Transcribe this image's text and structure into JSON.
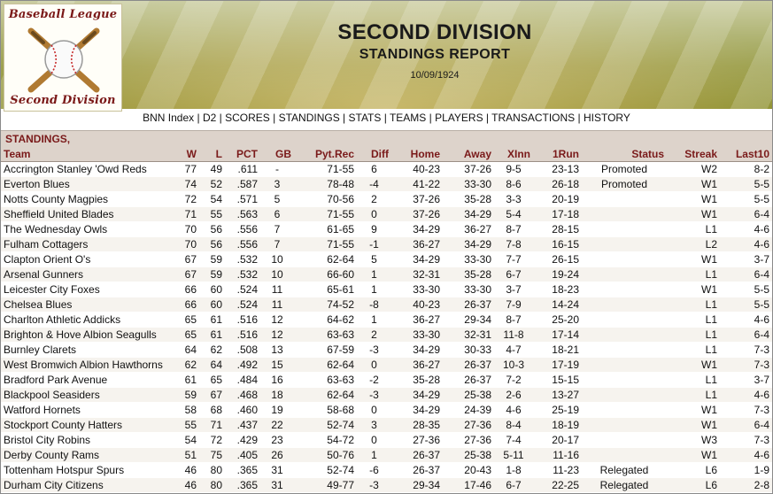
{
  "logo": {
    "top_text": "Baseball League",
    "bottom_text": "Second Division"
  },
  "header": {
    "title": "SECOND DIVISION",
    "subtitle": "STANDINGS REPORT",
    "date": "10/09/1924"
  },
  "nav": [
    "BNN Index",
    "D2",
    "SCORES",
    "STANDINGS",
    "STATS",
    "TEAMS",
    "PLAYERS",
    "TRANSACTIONS",
    "HISTORY"
  ],
  "section_title": "STANDINGS,",
  "columns": [
    "Team",
    "W",
    "L",
    "PCT",
    "GB",
    "Pyt.Rec",
    "Diff",
    "Home",
    "Away",
    "XInn",
    "1Run",
    "Status",
    "Streak",
    "Last10"
  ],
  "rows": [
    [
      "Accrington Stanley 'Owd Reds",
      "77",
      "49",
      ".611",
      "-",
      "71-55",
      "6",
      "40-23",
      "37-26",
      "9-5",
      "23-13",
      "Promoted",
      "W2",
      "8-2"
    ],
    [
      "Everton Blues",
      "74",
      "52",
      ".587",
      "3",
      "78-48",
      "-4",
      "41-22",
      "33-30",
      "8-6",
      "26-18",
      "Promoted",
      "W1",
      "5-5"
    ],
    [
      "Notts County Magpies",
      "72",
      "54",
      ".571",
      "5",
      "70-56",
      "2",
      "37-26",
      "35-28",
      "3-3",
      "20-19",
      "",
      "W1",
      "5-5"
    ],
    [
      "Sheffield United Blades",
      "71",
      "55",
      ".563",
      "6",
      "71-55",
      "0",
      "37-26",
      "34-29",
      "5-4",
      "17-18",
      "",
      "W1",
      "6-4"
    ],
    [
      "The Wednesday Owls",
      "70",
      "56",
      ".556",
      "7",
      "61-65",
      "9",
      "34-29",
      "36-27",
      "8-7",
      "28-15",
      "",
      "L1",
      "4-6"
    ],
    [
      "Fulham Cottagers",
      "70",
      "56",
      ".556",
      "7",
      "71-55",
      "-1",
      "36-27",
      "34-29",
      "7-8",
      "16-15",
      "",
      "L2",
      "4-6"
    ],
    [
      "Clapton Orient O's",
      "67",
      "59",
      ".532",
      "10",
      "62-64",
      "5",
      "34-29",
      "33-30",
      "7-7",
      "26-15",
      "",
      "W1",
      "3-7"
    ],
    [
      "Arsenal Gunners",
      "67",
      "59",
      ".532",
      "10",
      "66-60",
      "1",
      "32-31",
      "35-28",
      "6-7",
      "19-24",
      "",
      "L1",
      "6-4"
    ],
    [
      "Leicester City Foxes",
      "66",
      "60",
      ".524",
      "11",
      "65-61",
      "1",
      "33-30",
      "33-30",
      "3-7",
      "18-23",
      "",
      "W1",
      "5-5"
    ],
    [
      "Chelsea Blues",
      "66",
      "60",
      ".524",
      "11",
      "74-52",
      "-8",
      "40-23",
      "26-37",
      "7-9",
      "14-24",
      "",
      "L1",
      "5-5"
    ],
    [
      "Charlton Athletic Addicks",
      "65",
      "61",
      ".516",
      "12",
      "64-62",
      "1",
      "36-27",
      "29-34",
      "8-7",
      "25-20",
      "",
      "L1",
      "4-6"
    ],
    [
      "Brighton & Hove Albion Seagulls",
      "65",
      "61",
      ".516",
      "12",
      "63-63",
      "2",
      "33-30",
      "32-31",
      "11-8",
      "17-14",
      "",
      "L1",
      "6-4"
    ],
    [
      "Burnley Clarets",
      "64",
      "62",
      ".508",
      "13",
      "67-59",
      "-3",
      "34-29",
      "30-33",
      "4-7",
      "18-21",
      "",
      "L1",
      "7-3"
    ],
    [
      "West Bromwich Albion Hawthorns",
      "62",
      "64",
      ".492",
      "15",
      "62-64",
      "0",
      "36-27",
      "26-37",
      "10-3",
      "17-19",
      "",
      "W1",
      "7-3"
    ],
    [
      "Bradford Park Avenue",
      "61",
      "65",
      ".484",
      "16",
      "63-63",
      "-2",
      "35-28",
      "26-37",
      "7-2",
      "15-15",
      "",
      "L1",
      "3-7"
    ],
    [
      "Blackpool Seasiders",
      "59",
      "67",
      ".468",
      "18",
      "62-64",
      "-3",
      "34-29",
      "25-38",
      "2-6",
      "13-27",
      "",
      "L1",
      "4-6"
    ],
    [
      "Watford Hornets",
      "58",
      "68",
      ".460",
      "19",
      "58-68",
      "0",
      "34-29",
      "24-39",
      "4-6",
      "25-19",
      "",
      "W1",
      "7-3"
    ],
    [
      "Stockport County Hatters",
      "55",
      "71",
      ".437",
      "22",
      "52-74",
      "3",
      "28-35",
      "27-36",
      "8-4",
      "18-19",
      "",
      "W1",
      "6-4"
    ],
    [
      "Bristol City Robins",
      "54",
      "72",
      ".429",
      "23",
      "54-72",
      "0",
      "27-36",
      "27-36",
      "7-4",
      "20-17",
      "",
      "W3",
      "7-3"
    ],
    [
      "Derby County Rams",
      "51",
      "75",
      ".405",
      "26",
      "50-76",
      "1",
      "26-37",
      "25-38",
      "5-11",
      "11-16",
      "",
      "W1",
      "4-6"
    ],
    [
      "Tottenham Hotspur Spurs",
      "46",
      "80",
      ".365",
      "31",
      "52-74",
      "-6",
      "26-37",
      "20-43",
      "1-8",
      "11-23",
      "Relegated",
      "L6",
      "1-9"
    ],
    [
      "Durham City Citizens",
      "46",
      "80",
      ".365",
      "31",
      "49-77",
      "-3",
      "29-34",
      "17-46",
      "6-7",
      "22-25",
      "Relegated",
      "L6",
      "2-8"
    ]
  ]
}
